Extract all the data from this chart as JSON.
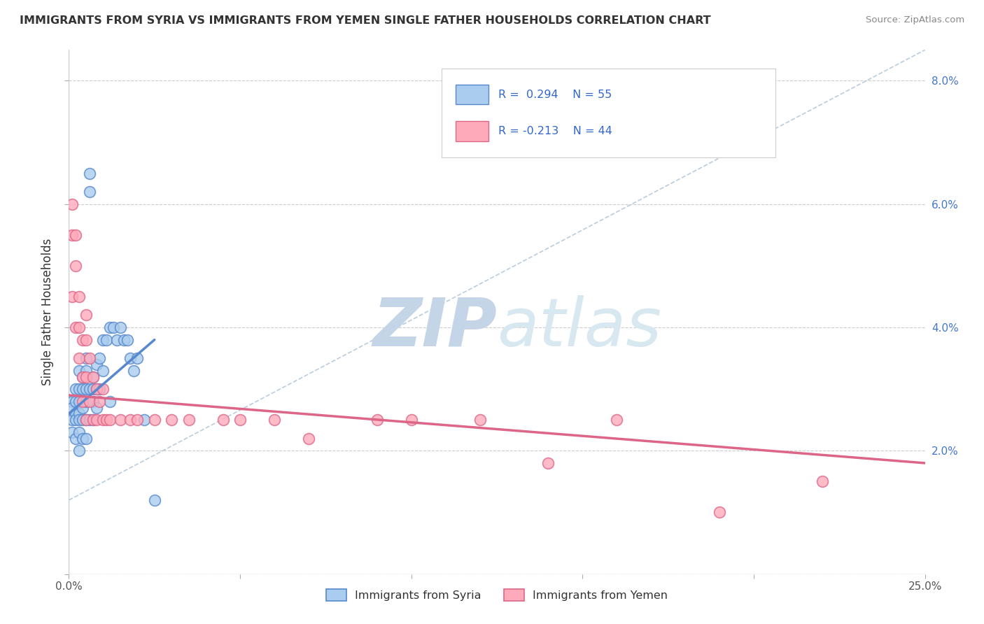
{
  "title": "IMMIGRANTS FROM SYRIA VS IMMIGRANTS FROM YEMEN SINGLE FATHER HOUSEHOLDS CORRELATION CHART",
  "source": "Source: ZipAtlas.com",
  "ylabel": "Single Father Households",
  "xlim": [
    0.0,
    0.25
  ],
  "ylim": [
    0.0,
    0.085
  ],
  "xtick_positions": [
    0.0,
    0.05,
    0.1,
    0.15,
    0.2,
    0.25
  ],
  "xticklabels": [
    "0.0%",
    "",
    "",
    "",
    "",
    "25.0%"
  ],
  "ytick_positions": [
    0.0,
    0.02,
    0.04,
    0.06,
    0.08
  ],
  "yticklabels_right": [
    "",
    "2.0%",
    "4.0%",
    "6.0%",
    "8.0%"
  ],
  "syria_color": "#5588CC",
  "syria_fill": "#AACCEE",
  "yemen_color": "#DD6688",
  "yemen_fill": "#FFAABB",
  "R_syria": 0.294,
  "N_syria": 55,
  "R_yemen": -0.213,
  "N_yemen": 44,
  "syria_line_x0": 0.0,
  "syria_line_x1": 0.025,
  "syria_line_y0": 0.026,
  "syria_line_y1": 0.038,
  "yemen_line_x0": 0.0,
  "yemen_line_x1": 0.25,
  "yemen_line_y0": 0.029,
  "yemen_line_y1": 0.018,
  "refline_x0": 0.0,
  "refline_x1": 0.25,
  "refline_y0": 0.012,
  "refline_y1": 0.085,
  "syria_x": [
    0.001,
    0.001,
    0.001,
    0.001,
    0.002,
    0.002,
    0.002,
    0.002,
    0.002,
    0.003,
    0.003,
    0.003,
    0.003,
    0.003,
    0.003,
    0.003,
    0.004,
    0.004,
    0.004,
    0.004,
    0.004,
    0.005,
    0.005,
    0.005,
    0.005,
    0.005,
    0.005,
    0.006,
    0.006,
    0.006,
    0.006,
    0.007,
    0.007,
    0.007,
    0.007,
    0.008,
    0.008,
    0.008,
    0.009,
    0.009,
    0.01,
    0.01,
    0.011,
    0.012,
    0.012,
    0.013,
    0.014,
    0.015,
    0.016,
    0.017,
    0.018,
    0.019,
    0.02,
    0.022,
    0.025
  ],
  "syria_y": [
    0.028,
    0.027,
    0.025,
    0.023,
    0.03,
    0.028,
    0.026,
    0.025,
    0.022,
    0.033,
    0.03,
    0.028,
    0.026,
    0.025,
    0.023,
    0.02,
    0.032,
    0.03,
    0.027,
    0.025,
    0.022,
    0.035,
    0.033,
    0.03,
    0.028,
    0.025,
    0.022,
    0.065,
    0.062,
    0.03,
    0.025,
    0.032,
    0.03,
    0.028,
    0.025,
    0.034,
    0.03,
    0.027,
    0.035,
    0.03,
    0.038,
    0.033,
    0.038,
    0.04,
    0.028,
    0.04,
    0.038,
    0.04,
    0.038,
    0.038,
    0.035,
    0.033,
    0.035,
    0.025,
    0.012
  ],
  "yemen_x": [
    0.001,
    0.001,
    0.001,
    0.002,
    0.002,
    0.002,
    0.003,
    0.003,
    0.003,
    0.004,
    0.004,
    0.004,
    0.005,
    0.005,
    0.005,
    0.005,
    0.006,
    0.006,
    0.007,
    0.007,
    0.008,
    0.008,
    0.009,
    0.01,
    0.01,
    0.011,
    0.012,
    0.015,
    0.018,
    0.02,
    0.025,
    0.03,
    0.035,
    0.045,
    0.05,
    0.06,
    0.07,
    0.09,
    0.1,
    0.12,
    0.14,
    0.16,
    0.19,
    0.22
  ],
  "yemen_y": [
    0.06,
    0.055,
    0.045,
    0.055,
    0.05,
    0.04,
    0.045,
    0.04,
    0.035,
    0.038,
    0.032,
    0.028,
    0.042,
    0.038,
    0.032,
    0.025,
    0.035,
    0.028,
    0.032,
    0.025,
    0.03,
    0.025,
    0.028,
    0.03,
    0.025,
    0.025,
    0.025,
    0.025,
    0.025,
    0.025,
    0.025,
    0.025,
    0.025,
    0.025,
    0.025,
    0.025,
    0.022,
    0.025,
    0.025,
    0.025,
    0.018,
    0.025,
    0.01,
    0.015
  ]
}
